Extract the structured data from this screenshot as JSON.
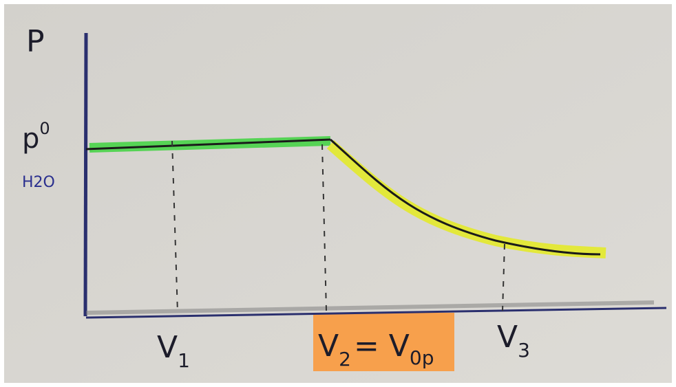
{
  "diagram": {
    "y_axis_label": "P",
    "level_label": {
      "symbol": "p",
      "superscript": "0",
      "subscript": "H2O"
    },
    "x_marks": [
      {
        "base": "V",
        "sub": "1"
      },
      {
        "base": "V",
        "sub": "2",
        "rest": "= V",
        "rest_sub": "0p"
      },
      {
        "base": "V",
        "sub": "3"
      }
    ]
  }
}
